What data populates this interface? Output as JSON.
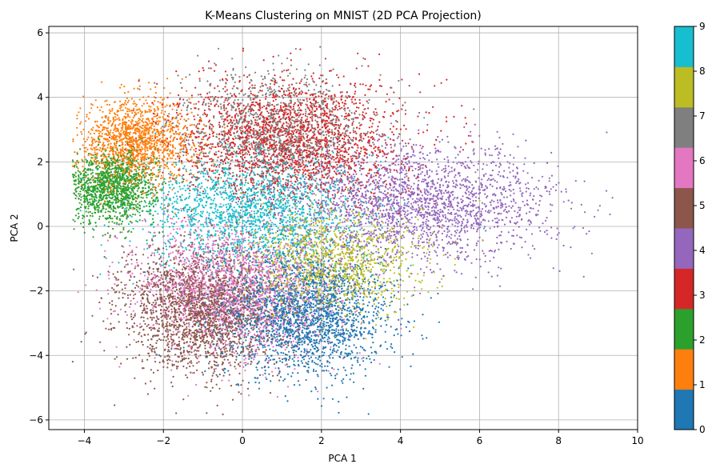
{
  "chart_data": {
    "type": "scatter",
    "title": "K-Means Clustering on MNIST (2D PCA Projection)",
    "xlabel": "PCA 1",
    "ylabel": "PCA 2",
    "xlim": [
      -4.9,
      10.0
    ],
    "ylim": [
      -6.3,
      6.2
    ],
    "x_ticks": [
      -4,
      -2,
      0,
      2,
      4,
      6,
      8,
      10
    ],
    "y_ticks": [
      -6,
      -4,
      -2,
      0,
      2,
      4,
      6
    ],
    "x_tick_labels": [
      "−4",
      "−2",
      "0",
      "2",
      "4",
      "6",
      "8",
      "10"
    ],
    "y_tick_labels": [
      "−6",
      "−4",
      "−2",
      "0",
      "2",
      "4",
      "6"
    ],
    "grid": true,
    "colorbar": {
      "range": [
        0,
        9
      ],
      "ticks": [
        0,
        1,
        2,
        3,
        4,
        5,
        6,
        7,
        8,
        9
      ],
      "tick_labels": [
        "0",
        "1",
        "2",
        "3",
        "4",
        "5",
        "6",
        "7",
        "8",
        "9"
      ],
      "colors": [
        "#1f77b4",
        "#ff7f0e",
        "#2ca02c",
        "#d62728",
        "#9467bd",
        "#8c564b",
        "#e377c2",
        "#7f7f7f",
        "#bcbd22",
        "#17becf"
      ]
    },
    "clusters": [
      {
        "label": 0,
        "center": [
          1.6,
          -2.7
        ],
        "spread": [
          1.05,
          0.95
        ],
        "rotation": -0.2,
        "count": 2200
      },
      {
        "label": 1,
        "center": [
          -2.7,
          2.6
        ],
        "spread": [
          0.75,
          0.65
        ],
        "rotation": 0.1,
        "count": 1500
      },
      {
        "label": 2,
        "center": [
          -3.3,
          1.2
        ],
        "spread": [
          0.55,
          0.55
        ],
        "rotation": 0.0,
        "count": 1300
      },
      {
        "label": 3,
        "center": [
          1.2,
          2.7
        ],
        "spread": [
          1.4,
          0.95
        ],
        "rotation": 0.0,
        "count": 2200
      },
      {
        "label": 4,
        "center": [
          4.5,
          0.7
        ],
        "spread": [
          1.7,
          0.9
        ],
        "rotation": 0.0,
        "count": 2200
      },
      {
        "label": 5,
        "center": [
          -1.0,
          -2.6
        ],
        "spread": [
          1.0,
          0.95
        ],
        "rotation": -0.35,
        "count": 2200
      },
      {
        "label": 6,
        "center": [
          -0.2,
          -2.0
        ],
        "spread": [
          1.3,
          1.0
        ],
        "rotation": -0.2,
        "count": 2000
      },
      {
        "label": 7,
        "center": [
          0.8,
          3.0
        ],
        "spread": [
          1.2,
          0.9
        ],
        "rotation": 0.0,
        "count": 1200
      },
      {
        "label": 8,
        "center": [
          2.3,
          -1.1
        ],
        "spread": [
          1.1,
          0.8
        ],
        "rotation": 0.0,
        "count": 1200
      },
      {
        "label": 9,
        "center": [
          0.2,
          0.5
        ],
        "spread": [
          1.4,
          0.9
        ],
        "rotation": 0.0,
        "count": 1800
      }
    ]
  }
}
